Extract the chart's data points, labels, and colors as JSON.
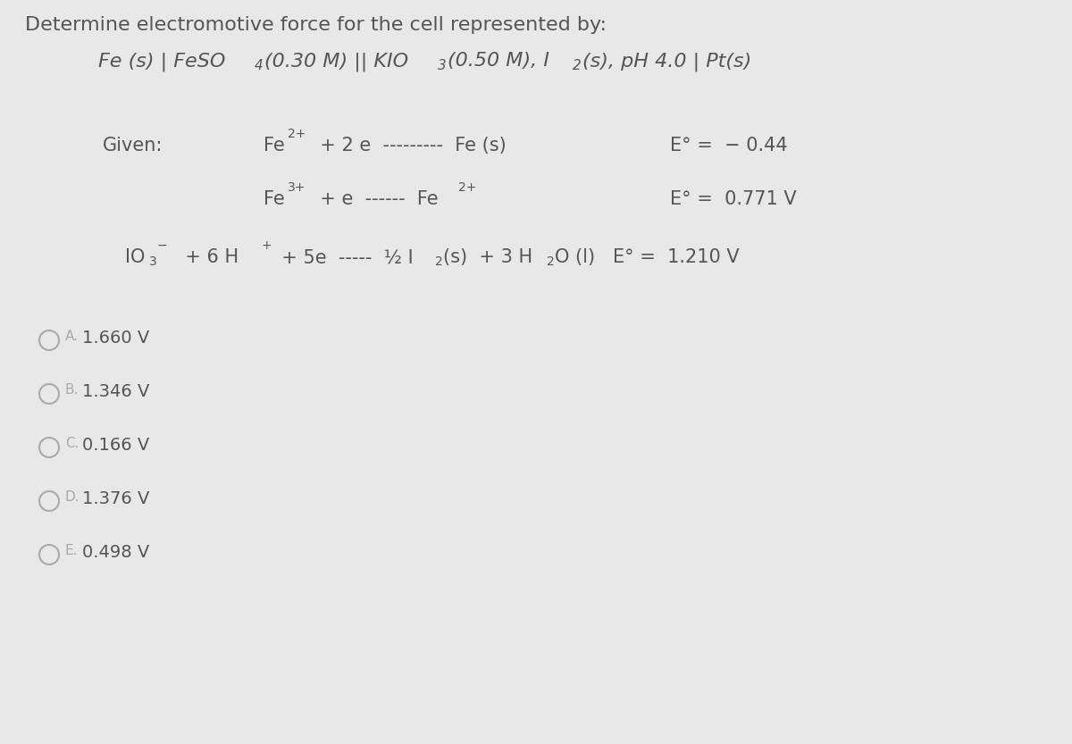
{
  "background_color": "#e8e8e8",
  "font_color": "#555555",
  "circle_color": "#aaaaaa",
  "title": "Determine electromotive force for the cell represented by:",
  "cell_notation": "Fe (s) | FeSO",
  "cell_sub4": "4",
  "cell_mid": "(0.30 M) || KIO",
  "cell_sub3": "3",
  "cell_end": "(0.50 M), I",
  "cell_sub2": "2",
  "cell_fin": "(s), pH 4.0 | Pt(s)",
  "given": "Given:",
  "dash9": "---------",
  "dash6": "------",
  "dash5": "-----",
  "options": [
    {
      "letter": "A.",
      "value": "1.660 V"
    },
    {
      "letter": "B.",
      "value": "1.346 V"
    },
    {
      "letter": "C.",
      "value": "0.166 V"
    },
    {
      "letter": "D.",
      "value": "1.376 V"
    },
    {
      "letter": "E.",
      "value": "0.498 V"
    }
  ]
}
